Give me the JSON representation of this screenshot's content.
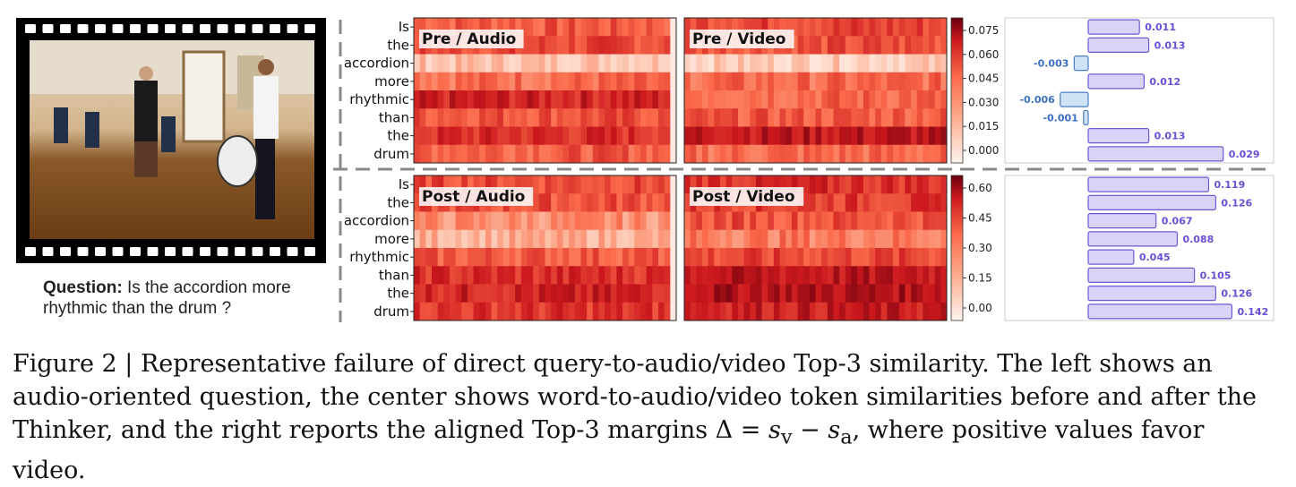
{
  "figure": {
    "question_label": "Question:",
    "question_text": "Is the accordion more rhythmic than the drum ?",
    "words": [
      "Is",
      "the",
      "accordion",
      "more",
      "rhythmic",
      "than",
      "the",
      "drum"
    ],
    "panels": {
      "pre_audio": "Pre / Audio",
      "pre_video": "Pre / Video",
      "post_audio": "Post / Audio",
      "post_video": "Post / Video"
    },
    "colorbar_pre_ticks": [
      "0.075",
      "0.060",
      "0.045",
      "0.030",
      "0.015",
      "0.000"
    ],
    "colorbar_post_ticks": [
      "0.60",
      "0.45",
      "0.30",
      "0.15",
      "0.00"
    ]
  },
  "chart_data": [
    {
      "type": "heatmap",
      "name": "Pre / Audio",
      "rows": [
        "Is",
        "the",
        "accordion",
        "more",
        "rhythmic",
        "than",
        "the",
        "drum"
      ],
      "row_intensity": [
        0.55,
        0.6,
        0.22,
        0.5,
        0.72,
        0.58,
        0.68,
        0.55
      ]
    },
    {
      "type": "heatmap",
      "name": "Pre / Video",
      "rows": [
        "Is",
        "the",
        "accordion",
        "more",
        "rhythmic",
        "than",
        "the",
        "drum"
      ],
      "row_intensity": [
        0.62,
        0.58,
        0.18,
        0.5,
        0.52,
        0.55,
        0.78,
        0.5
      ]
    },
    {
      "type": "heatmap",
      "name": "Post / Audio",
      "rows": [
        "Is",
        "the",
        "accordion",
        "more",
        "rhythmic",
        "than",
        "the",
        "drum"
      ],
      "row_intensity": [
        0.6,
        0.58,
        0.38,
        0.28,
        0.55,
        0.68,
        0.72,
        0.66
      ]
    },
    {
      "type": "heatmap",
      "name": "Post / Video",
      "rows": [
        "Is",
        "the",
        "accordion",
        "more",
        "rhythmic",
        "than",
        "the",
        "drum"
      ],
      "row_intensity": [
        0.68,
        0.64,
        0.58,
        0.45,
        0.6,
        0.78,
        0.82,
        0.75
      ]
    },
    {
      "type": "bar",
      "name": "Pre margins",
      "categories": [
        "Is",
        "the",
        "accordion",
        "more",
        "rhythmic",
        "than",
        "the",
        "drum"
      ],
      "values": [
        0.011,
        0.013,
        -0.003,
        0.012,
        -0.006,
        -0.001,
        0.013,
        0.029
      ],
      "labels": [
        "0.011",
        "0.013",
        "-0.003",
        "0.012",
        "-0.006",
        "-0.001",
        "0.013",
        "0.029"
      ]
    },
    {
      "type": "bar",
      "name": "Post margins",
      "categories": [
        "Is",
        "the",
        "accordion",
        "more",
        "rhythmic",
        "than",
        "the",
        "drum"
      ],
      "values": [
        0.119,
        0.126,
        0.067,
        0.088,
        0.045,
        0.105,
        0.126,
        0.142
      ],
      "labels": [
        "0.119",
        "0.126",
        "0.067",
        "0.088",
        "0.045",
        "0.105",
        "0.126",
        "0.142"
      ]
    }
  ],
  "caption": {
    "part1": "Figure 2 | Representative failure of direct query-to-audio/video Top-3 similarity. The left shows an audio-oriented question, the center shows word-to-audio/video token similarities before and after the Thinker, and the right reports the aligned Top-3 margins Δ = ",
    "sv": "s",
    "sv_sub": "v",
    "minus": " − ",
    "sa": "s",
    "sa_sub": "a",
    "part2": ", where positive values favor video."
  }
}
